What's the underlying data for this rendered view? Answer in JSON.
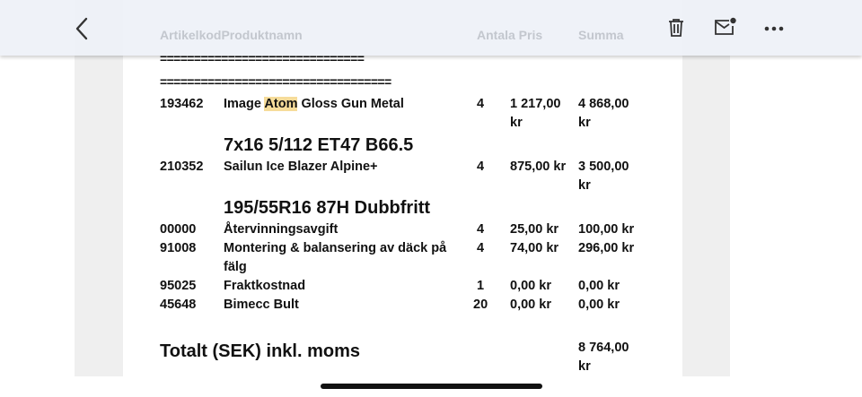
{
  "header_ghost": {
    "col1": "ArtikelkodProduktnamn",
    "col2": "Antala Pris",
    "col3": "Summa"
  },
  "separators": [
    "==============================",
    "=================================="
  ],
  "rows": [
    {
      "code": "193462",
      "name_pre": "Image ",
      "name_hl": "Atom",
      "name_post": " Gloss Gun Metal",
      "qty": "4",
      "price": "1 217,00",
      "price2": "kr",
      "sum": "4 868,00",
      "sum2": "kr"
    },
    {
      "big": "7x16 5/112 ET47 B66.5"
    },
    {
      "code": "210352",
      "name": "Sailun Ice Blazer Alpine+",
      "qty": "4",
      "price": "875,00 kr",
      "sum": "3 500,00",
      "sum2": "kr"
    },
    {
      "big": "195/55R16 87H Dubbfritt"
    },
    {
      "code": "00000",
      "name": "Återvinningsavgift",
      "qty": "4",
      "price": "25,00 kr",
      "sum": "100,00 kr"
    },
    {
      "code": "91008",
      "name": "Montering & balansering av däck på",
      "name2": "fälg",
      "qty": "4",
      "price": "74,00 kr",
      "sum": "296,00 kr"
    },
    {
      "code": "95025",
      "name": "Fraktkostnad",
      "qty": "1",
      "price": "0,00 kr",
      "sum": "0,00 kr"
    },
    {
      "code": "45648",
      "name": "Bimecc Bult",
      "qty": "20",
      "price": "0,00 kr",
      "sum": "0,00 kr"
    }
  ],
  "total": {
    "label": "Totalt (SEK) inkl. moms",
    "value": "8 764,00",
    "value2": "kr"
  },
  "toolbar": {
    "back": "back-icon",
    "delete": "trash-icon",
    "mail": "mail-unread-icon",
    "more": "more-icon"
  },
  "colors": {
    "highlight": "#f6dc9a",
    "toolbar": "#eef1f7"
  }
}
